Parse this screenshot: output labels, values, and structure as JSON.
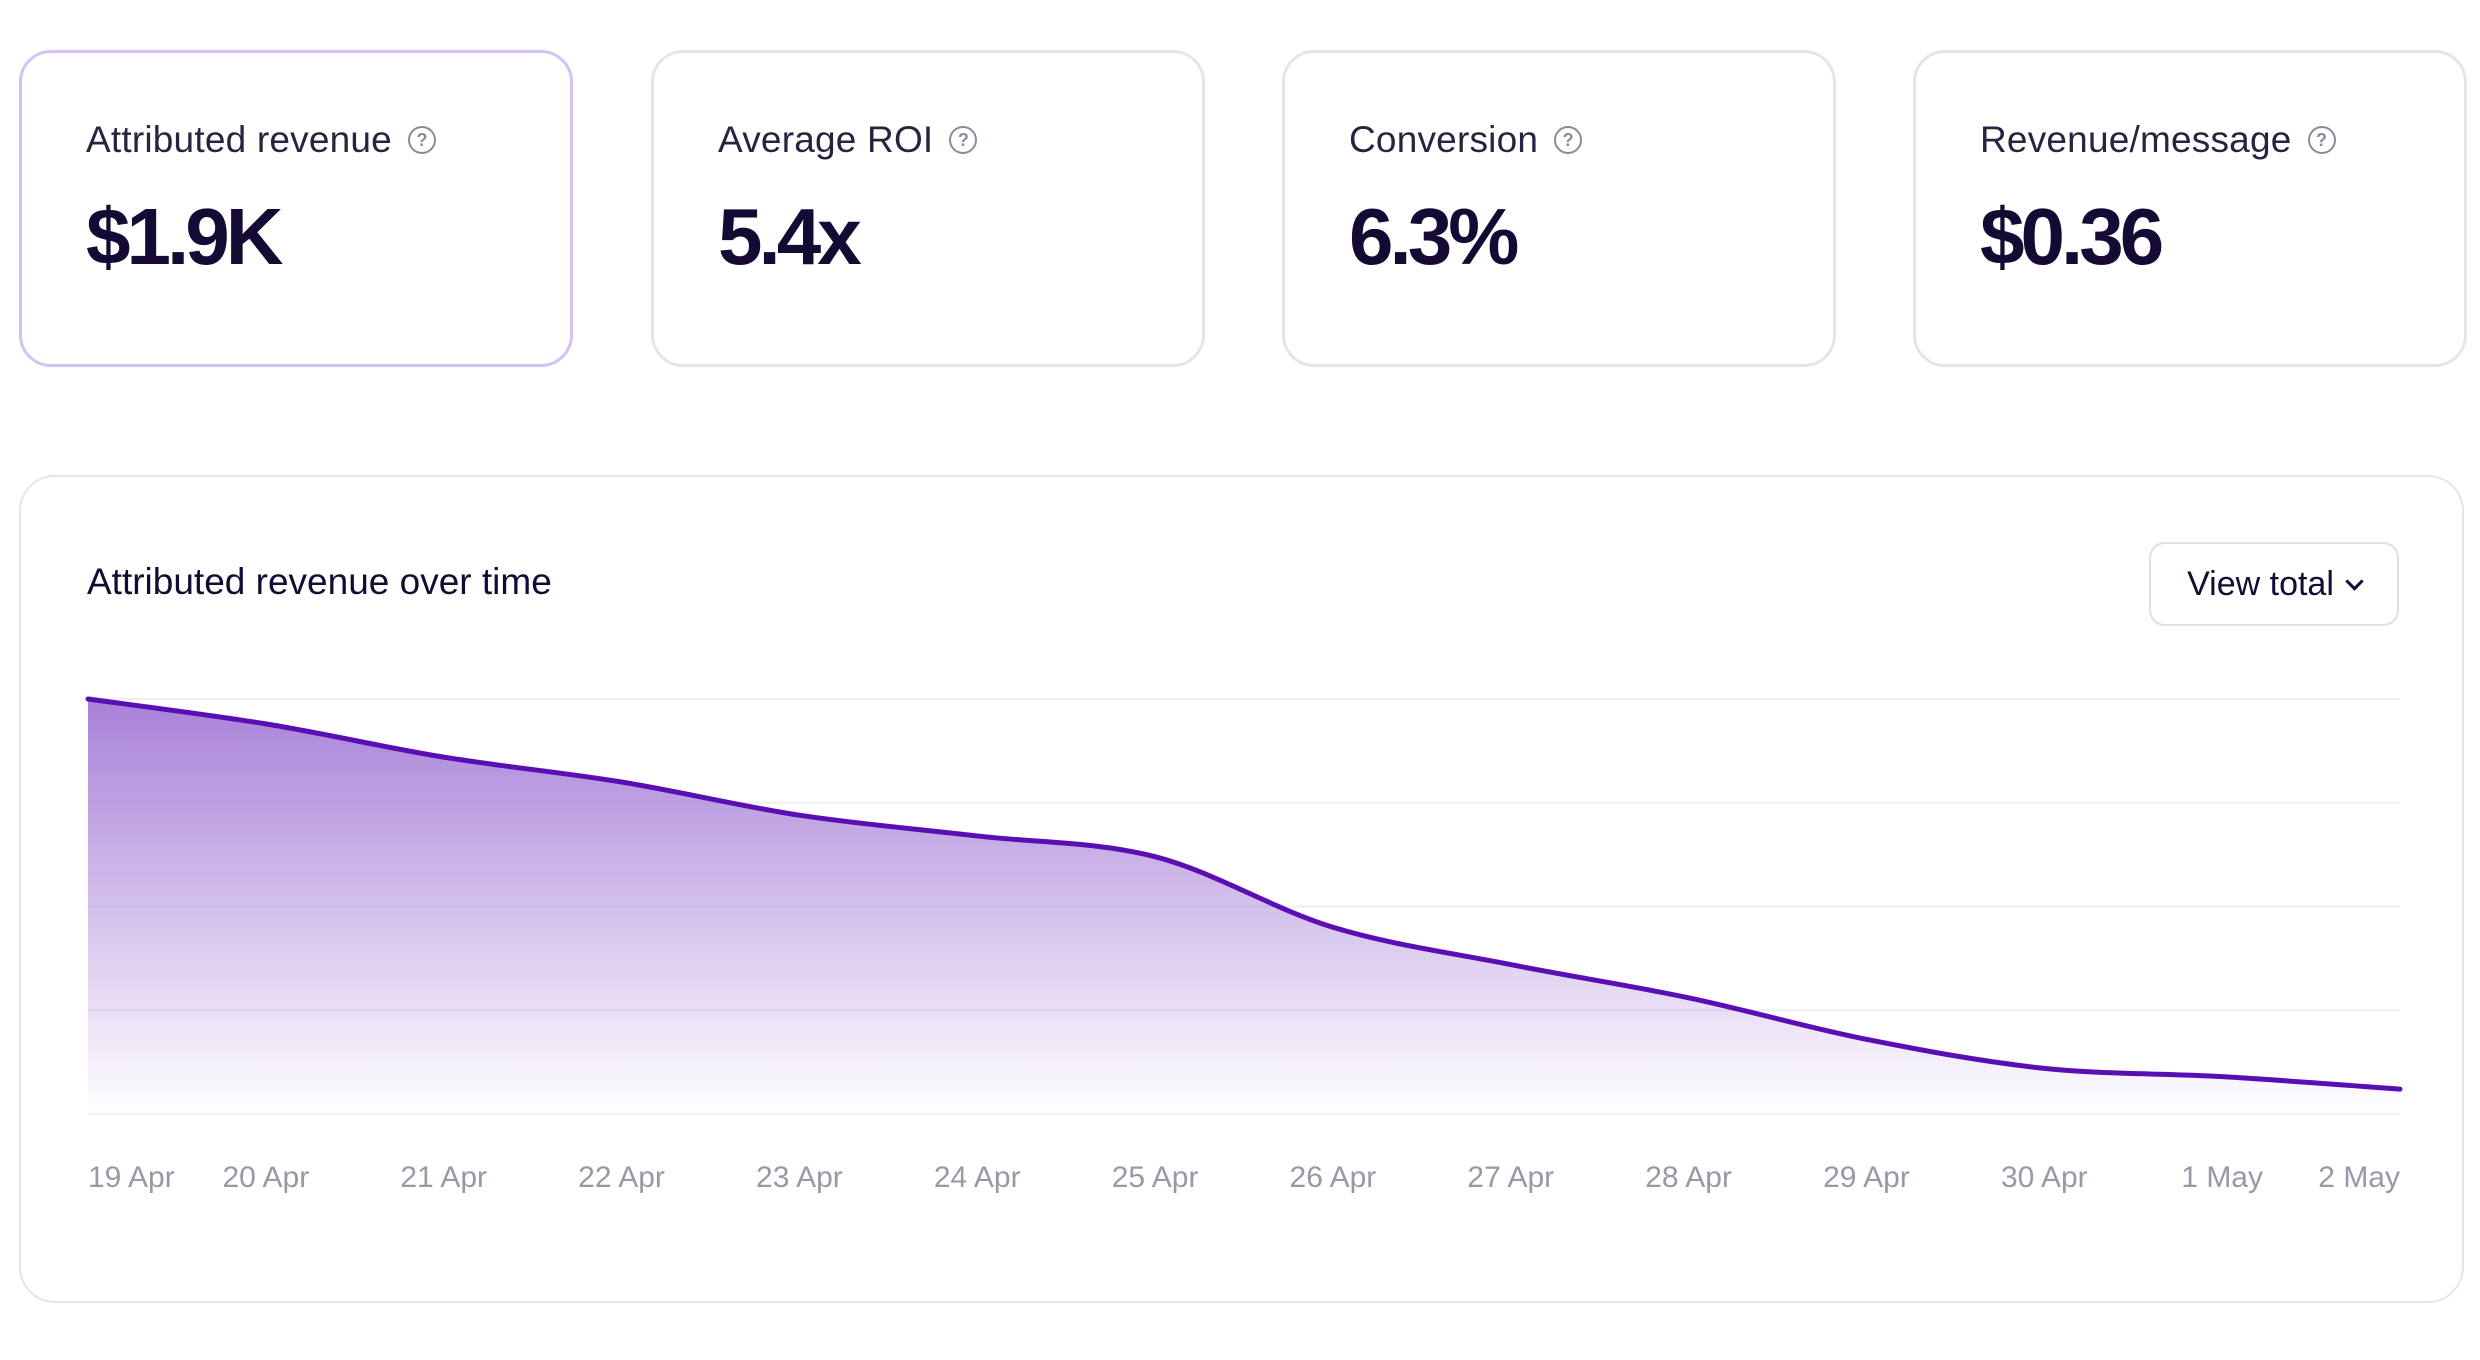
{
  "kpis": [
    {
      "label": "Attributed revenue",
      "value": "$1.9K",
      "selected": true
    },
    {
      "label": "Average ROI",
      "value": "5.4x",
      "selected": false
    },
    {
      "label": "Conversion",
      "value": "6.3%",
      "selected": false
    },
    {
      "label": "Revenue/message",
      "value": "$0.36",
      "selected": false
    }
  ],
  "help_icon_glyph": "?",
  "chart_card": {
    "title": "Attributed revenue over time",
    "view_button_label": "View total"
  },
  "chart_data": {
    "type": "area",
    "title": "Attributed revenue over time",
    "categories": [
      "19 Apr",
      "20 Apr",
      "21 Apr",
      "22 Apr",
      "23 Apr",
      "24 Apr",
      "25 Apr",
      "26 Apr",
      "27 Apr",
      "28 Apr",
      "29 Apr",
      "30 Apr",
      "1 May",
      "2 May"
    ],
    "series": [
      {
        "values": [
          100,
          94,
          86,
          80,
          72,
          67,
          62,
          45,
          36,
          28,
          18,
          11,
          9,
          6
        ]
      }
    ],
    "ylim": [
      0,
      100
    ],
    "grid": true,
    "y_tick_labels_shown": false,
    "colors": {
      "line": "#5a0fb4",
      "fill_top": "#a47ad6",
      "grid": "#eeedf1",
      "tick_text": "#9a97a6"
    }
  }
}
